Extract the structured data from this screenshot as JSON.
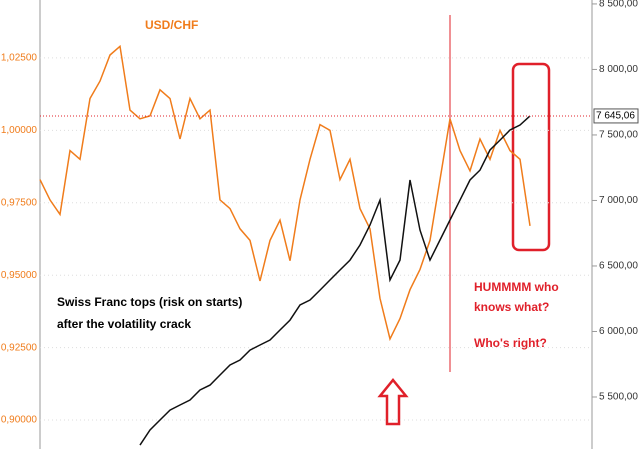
{
  "chart_data": {
    "type": "line",
    "annotations": [
      {
        "text": "USD/CHF",
        "color": "#f07c1b"
      },
      {
        "text": "Swiss Franc tops (risk on starts)",
        "color": "#000000"
      },
      {
        "text": "after the volatility crack",
        "color": "#000000"
      },
      {
        "text": "HUMMMM  who",
        "color": "#e0202a"
      },
      {
        "text": "knows what?",
        "color": "#e0202a"
      },
      {
        "text": "Who's right?",
        "color": "#e0202a"
      }
    ],
    "categories": [
      null,
      null,
      null,
      null,
      null,
      null,
      null,
      null,
      null,
      null,
      null,
      null,
      null,
      null,
      null,
      null,
      null,
      null,
      null,
      null,
      null,
      null,
      null,
      null,
      null,
      null,
      null,
      null,
      null,
      null,
      null,
      null,
      null,
      null,
      null,
      null,
      null,
      null,
      null,
      null,
      null,
      null,
      null,
      null,
      null,
      null,
      null,
      null,
      null,
      null
    ],
    "series": [
      {
        "name": "USD/CHF",
        "color": "#f07c1b",
        "values": [
          0.983,
          0.976,
          0.971,
          0.993,
          0.99,
          1.011,
          1.017,
          1.026,
          1.029,
          1.007,
          1.004,
          1.005,
          1.014,
          1.011,
          0.997,
          1.011,
          1.004,
          1.007,
          0.976,
          0.973,
          0.966,
          0.962,
          0.948,
          0.962,
          0.969,
          0.955,
          0.976,
          0.99,
          1.002,
          1.0,
          0.983,
          0.99,
          0.973,
          0.966,
          0.942,
          0.928,
          0.935,
          0.945,
          0.952,
          0.962,
          0.983,
          1.004,
          0.993,
          0.986,
          0.997,
          0.99,
          1.0,
          0.993,
          0.99,
          0.967
        ]
      },
      {
        "color": "#111111",
        "axis": "y2",
        "values": [
          null,
          null,
          null,
          null,
          null,
          null,
          null,
          null,
          null,
          null,
          5133,
          5248,
          5324,
          5400,
          5439,
          5477,
          5553,
          5591,
          5668,
          5744,
          5782,
          5858,
          5897,
          5935,
          6011,
          6087,
          6202,
          6240,
          6316,
          6393,
          6469,
          6545,
          6660,
          6813,
          7003,
          6393,
          6545,
          7156,
          6774,
          6545,
          6698,
          6851,
          7003,
          7156,
          7232,
          7385,
          7461,
          7538,
          7576,
          7645.06
        ],
        "value_labels": [
          null,
          null,
          null,
          null,
          null,
          null,
          null,
          null,
          null,
          null,
          null,
          null,
          null,
          null,
          null,
          null,
          null,
          null,
          null,
          null,
          null,
          null,
          null,
          null,
          null,
          null,
          null,
          null,
          null,
          null,
          null,
          null,
          null,
          null,
          null,
          null,
          null,
          null,
          null,
          null,
          null,
          null,
          null,
          null,
          null,
          null,
          null,
          null,
          null,
          "7 645,06"
        ]
      }
    ],
    "ylim": [
      0.89,
      1.045
    ],
    "yticks": [
      {
        "value": 0.9,
        "label": "0,90000"
      },
      {
        "value": 0.925,
        "label": "0,92500"
      },
      {
        "value": 0.95,
        "label": "0,95000"
      },
      {
        "value": 0.975,
        "label": "0,97500"
      },
      {
        "value": 1.0,
        "label": "1,00000"
      },
      {
        "value": 1.025,
        "label": "1,02500"
      }
    ],
    "y2lim": [
      5103,
      8530
    ],
    "y2ticks": [
      {
        "value": 5500,
        "label": "5 500,00"
      },
      {
        "value": 6000,
        "label": "6 000,00"
      },
      {
        "value": 6500,
        "label": "6 500,00"
      },
      {
        "value": 7000,
        "label": "7 000,00"
      },
      {
        "value": 7500,
        "label": "7 500,00"
      },
      {
        "value": 8000,
        "label": "8 000,00"
      },
      {
        "value": 8500,
        "label": "8 500,00"
      }
    ],
    "grid": true
  }
}
